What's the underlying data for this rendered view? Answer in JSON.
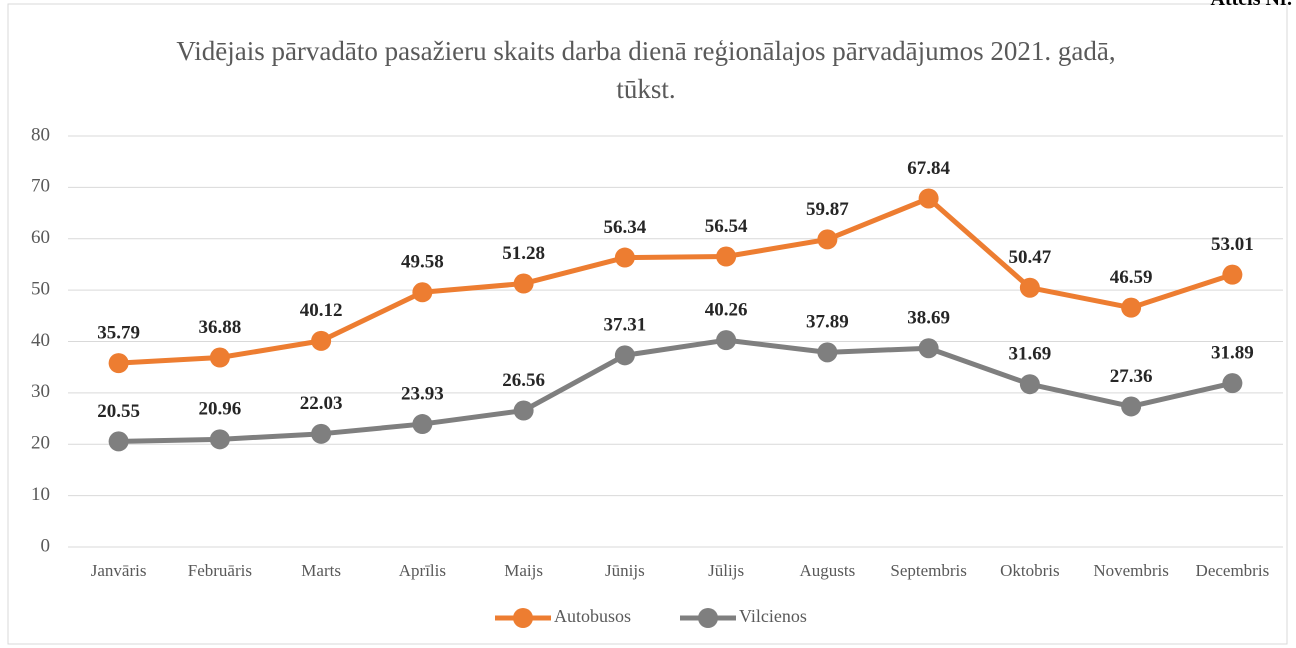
{
  "figure_label": "Attēls Nr.",
  "chart_data": {
    "type": "line",
    "title": "Vidējais pārvadāto pasažieru skaits darba dienā reģionālajos pārvadājumos 2021. gadā, tūkst.",
    "categories": [
      "Janvāris",
      "Februāris",
      "Marts",
      "Aprīlis",
      "Maijs",
      "Jūnijs",
      "Jūlijs",
      "Augusts",
      "Septembris",
      "Oktobris",
      "Novembris",
      "Decembris"
    ],
    "series": [
      {
        "name": "Autobusos",
        "color": "#ed7d31",
        "values": [
          35.79,
          36.88,
          40.12,
          49.58,
          51.28,
          56.34,
          56.54,
          59.87,
          67.84,
          50.47,
          46.59,
          53.01
        ]
      },
      {
        "name": "Vilcienos",
        "color": "#7f7f7f",
        "values": [
          20.55,
          20.96,
          22.03,
          23.93,
          26.56,
          37.31,
          40.26,
          37.89,
          38.69,
          31.69,
          27.36,
          31.89
        ]
      }
    ],
    "ylim": [
      0,
      80
    ],
    "yticks": [
      0,
      10,
      20,
      30,
      40,
      50,
      60,
      70,
      80
    ],
    "grid": true,
    "legend": "bottom"
  }
}
